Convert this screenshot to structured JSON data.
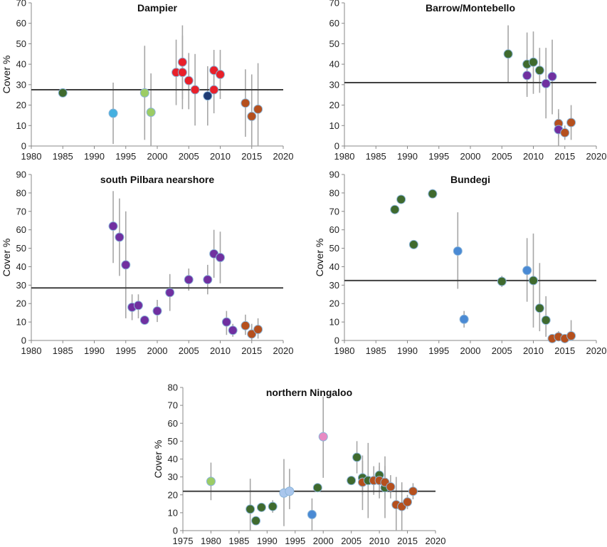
{
  "colors": {
    "axis": "#888888",
    "errorbar": "#a6a6a6",
    "meanline": "#404040",
    "point_outline": "#8ab4d8",
    "dark_green": "#3f6a2e",
    "light_green": "#9ccc65",
    "sky_blue": "#45b0e0",
    "mid_blue": "#4a8ad4",
    "light_blue": "#a9c6ec",
    "navy": "#1f3b73",
    "red": "#e8202a",
    "rust": "#b5501e",
    "purple": "#7030a0",
    "pink": "#e78ac3"
  },
  "chart_data": [
    {
      "type": "scatter",
      "title": "Dampier",
      "ylabel": "Cover %",
      "xlim": [
        1980,
        2020
      ],
      "xticks": [
        1980,
        1985,
        1990,
        1995,
        2000,
        2005,
        2010,
        2015,
        2020
      ],
      "ylim": [
        0,
        70
      ],
      "yticks": [
        0,
        10,
        20,
        30,
        40,
        50,
        60,
        70
      ],
      "mean": 27.5,
      "points": [
        {
          "x": 1985,
          "y": 26,
          "lo": 26,
          "hi": 26,
          "color": "dark_green"
        },
        {
          "x": 1993,
          "y": 16,
          "lo": 1,
          "hi": 31,
          "color": "sky_blue"
        },
        {
          "x": 1998,
          "y": 26,
          "lo": 3,
          "hi": 49,
          "color": "light_green"
        },
        {
          "x": 1999,
          "y": 16.5,
          "lo": 0,
          "hi": 35.5,
          "color": "light_green"
        },
        {
          "x": 2003,
          "y": 36,
          "lo": 20,
          "hi": 52,
          "color": "red"
        },
        {
          "x": 2004,
          "y": 41,
          "lo": 23,
          "hi": 59,
          "color": "red"
        },
        {
          "x": 2004,
          "y": 36,
          "lo": 18,
          "hi": 54,
          "color": "red"
        },
        {
          "x": 2005,
          "y": 32,
          "lo": 18,
          "hi": 45.5,
          "color": "red"
        },
        {
          "x": 2006,
          "y": 27.5,
          "lo": 10,
          "hi": 45,
          "color": "red"
        },
        {
          "x": 2008,
          "y": 24.5,
          "lo": 10,
          "hi": 39,
          "color": "navy"
        },
        {
          "x": 2009,
          "y": 37,
          "lo": 27,
          "hi": 47,
          "color": "red"
        },
        {
          "x": 2009,
          "y": 27.5,
          "lo": 16,
          "hi": 39,
          "color": "red"
        },
        {
          "x": 2010,
          "y": 35,
          "lo": 23,
          "hi": 47,
          "color": "red"
        },
        {
          "x": 2014,
          "y": 21,
          "lo": 4.5,
          "hi": 37.5,
          "color": "rust"
        },
        {
          "x": 2015,
          "y": 14.5,
          "lo": 0,
          "hi": 35,
          "color": "rust"
        },
        {
          "x": 2016,
          "y": 18,
          "lo": 0,
          "hi": 40.5,
          "color": "rust"
        }
      ]
    },
    {
      "type": "scatter",
      "title": "Barrow/Montebello",
      "ylabel": "",
      "xlim": [
        1980,
        2020
      ],
      "xticks": [
        1980,
        1985,
        1990,
        1995,
        2000,
        2005,
        2010,
        2015,
        2020
      ],
      "ylim": [
        0,
        70
      ],
      "yticks": [
        0,
        10,
        20,
        30,
        40,
        50,
        60,
        70
      ],
      "mean": 31,
      "points": [
        {
          "x": 2006,
          "y": 45,
          "lo": 31,
          "hi": 59,
          "color": "dark_green"
        },
        {
          "x": 2009,
          "y": 40,
          "lo": 25,
          "hi": 55.5,
          "color": "dark_green"
        },
        {
          "x": 2009,
          "y": 34.5,
          "lo": 24,
          "hi": 45,
          "color": "purple"
        },
        {
          "x": 2010,
          "y": 41,
          "lo": 25.5,
          "hi": 56,
          "color": "dark_green"
        },
        {
          "x": 2011,
          "y": 37,
          "lo": 26,
          "hi": 48,
          "color": "dark_green"
        },
        {
          "x": 2012,
          "y": 30.5,
          "lo": 13.5,
          "hi": 48,
          "color": "purple"
        },
        {
          "x": 2013,
          "y": 34,
          "lo": 15.5,
          "hi": 52,
          "color": "purple"
        },
        {
          "x": 2014,
          "y": 11,
          "lo": 4,
          "hi": 18,
          "color": "rust"
        },
        {
          "x": 2014,
          "y": 8,
          "lo": 0,
          "hi": 16,
          "color": "purple"
        },
        {
          "x": 2015,
          "y": 6.5,
          "lo": 3,
          "hi": 10,
          "color": "rust"
        },
        {
          "x": 2016,
          "y": 11.5,
          "lo": 3,
          "hi": 20,
          "color": "rust"
        }
      ]
    },
    {
      "type": "scatter",
      "title": "south Pilbara nearshore",
      "ylabel": "Cover %",
      "xlim": [
        1980,
        2020
      ],
      "xticks": [
        1980,
        1985,
        1990,
        1995,
        2000,
        2005,
        2010,
        2015,
        2020
      ],
      "ylim": [
        0,
        90
      ],
      "yticks": [
        0,
        10,
        20,
        30,
        40,
        50,
        60,
        70,
        80,
        90
      ],
      "mean": 28.5,
      "points": [
        {
          "x": 1993,
          "y": 62,
          "lo": 42,
          "hi": 81,
          "color": "purple"
        },
        {
          "x": 1994,
          "y": 56,
          "lo": 35,
          "hi": 77,
          "color": "purple"
        },
        {
          "x": 1995,
          "y": 41,
          "lo": 12,
          "hi": 70,
          "color": "purple"
        },
        {
          "x": 1996,
          "y": 18,
          "lo": 11,
          "hi": 25,
          "color": "purple"
        },
        {
          "x": 1997,
          "y": 19,
          "lo": 12,
          "hi": 25,
          "color": "purple"
        },
        {
          "x": 1998,
          "y": 11,
          "lo": 9,
          "hi": 13,
          "color": "purple"
        },
        {
          "x": 2000,
          "y": 16,
          "lo": 10,
          "hi": 22,
          "color": "purple"
        },
        {
          "x": 2002,
          "y": 26,
          "lo": 16,
          "hi": 36,
          "color": "purple"
        },
        {
          "x": 2005,
          "y": 33,
          "lo": 27,
          "hi": 39,
          "color": "purple"
        },
        {
          "x": 2008,
          "y": 33,
          "lo": 25,
          "hi": 41,
          "color": "purple"
        },
        {
          "x": 2009,
          "y": 47,
          "lo": 34,
          "hi": 60,
          "color": "purple"
        },
        {
          "x": 2010,
          "y": 45,
          "lo": 31,
          "hi": 59,
          "color": "purple"
        },
        {
          "x": 2011,
          "y": 10,
          "lo": 3,
          "hi": 16,
          "color": "purple"
        },
        {
          "x": 2012,
          "y": 5.5,
          "lo": 2,
          "hi": 9,
          "color": "purple"
        },
        {
          "x": 2014,
          "y": 8,
          "lo": 3,
          "hi": 14,
          "color": "rust"
        },
        {
          "x": 2015,
          "y": 3.5,
          "lo": 0,
          "hi": 9,
          "color": "rust"
        },
        {
          "x": 2016,
          "y": 6,
          "lo": 1,
          "hi": 12,
          "color": "rust"
        }
      ]
    },
    {
      "type": "scatter",
      "title": "Bundegi",
      "ylabel": "Cover %",
      "xlim": [
        1980,
        2020
      ],
      "xticks": [
        1980,
        1985,
        1990,
        1995,
        2000,
        2005,
        2010,
        2015,
        2020
      ],
      "ylim": [
        0,
        90
      ],
      "yticks": [
        0,
        10,
        20,
        30,
        40,
        50,
        60,
        70,
        80,
        90
      ],
      "mean": 32.5,
      "points": [
        {
          "x": 1988,
          "y": 71,
          "lo": 71,
          "hi": 71,
          "color": "dark_green"
        },
        {
          "x": 1989,
          "y": 76.5,
          "lo": 76.5,
          "hi": 76.5,
          "color": "dark_green"
        },
        {
          "x": 1991,
          "y": 52,
          "lo": 52,
          "hi": 52,
          "color": "dark_green"
        },
        {
          "x": 1994,
          "y": 79.5,
          "lo": 79.5,
          "hi": 79.5,
          "color": "dark_green"
        },
        {
          "x": 1998,
          "y": 48.5,
          "lo": 28,
          "hi": 69.5,
          "color": "mid_blue"
        },
        {
          "x": 1999,
          "y": 11.5,
          "lo": 7,
          "hi": 16,
          "color": "mid_blue"
        },
        {
          "x": 2005,
          "y": 32,
          "lo": 29,
          "hi": 35,
          "color": "dark_green"
        },
        {
          "x": 2009,
          "y": 38,
          "lo": 21,
          "hi": 55.5,
          "color": "mid_blue"
        },
        {
          "x": 2010,
          "y": 32.5,
          "lo": 7,
          "hi": 58,
          "color": "dark_green"
        },
        {
          "x": 2011,
          "y": 17.5,
          "lo": 5,
          "hi": 42,
          "color": "dark_green"
        },
        {
          "x": 2012,
          "y": 11,
          "lo": 2,
          "hi": 24,
          "color": "dark_green"
        },
        {
          "x": 2013,
          "y": 1,
          "lo": 0,
          "hi": 3,
          "color": "rust"
        },
        {
          "x": 2014,
          "y": 2,
          "lo": 0,
          "hi": 5,
          "color": "rust"
        },
        {
          "x": 2015,
          "y": 1,
          "lo": 0,
          "hi": 3,
          "color": "rust"
        },
        {
          "x": 2016,
          "y": 2.5,
          "lo": 0,
          "hi": 11,
          "color": "rust"
        }
      ]
    },
    {
      "type": "scatter",
      "title": "northern Ningaloo",
      "ylabel": "Cover %",
      "xlim": [
        1975,
        2020
      ],
      "xticks": [
        1975,
        1980,
        1985,
        1990,
        1995,
        2000,
        2005,
        2010,
        2015,
        2020
      ],
      "ylim": [
        0,
        80
      ],
      "yticks": [
        0,
        10,
        20,
        30,
        40,
        50,
        60,
        70,
        80
      ],
      "mean": 22,
      "points": [
        {
          "x": 1980,
          "y": 27.5,
          "lo": 17,
          "hi": 38,
          "color": "light_green"
        },
        {
          "x": 1987,
          "y": 12,
          "lo": 0,
          "hi": 29,
          "color": "dark_green"
        },
        {
          "x": 1988,
          "y": 5.5,
          "lo": 4,
          "hi": 7,
          "color": "dark_green"
        },
        {
          "x": 1989,
          "y": 13,
          "lo": 11,
          "hi": 15,
          "color": "dark_green"
        },
        {
          "x": 1991,
          "y": 13.5,
          "lo": 10,
          "hi": 17,
          "color": "dark_green"
        },
        {
          "x": 1993,
          "y": 21,
          "lo": 2.5,
          "hi": 40,
          "color": "light_blue"
        },
        {
          "x": 1994,
          "y": 22,
          "lo": 12,
          "hi": 34.5,
          "color": "light_blue"
        },
        {
          "x": 1998,
          "y": 9,
          "lo": 0,
          "hi": 18,
          "color": "mid_blue"
        },
        {
          "x": 1999,
          "y": 24,
          "lo": 22,
          "hi": 26,
          "color": "dark_green"
        },
        {
          "x": 2000,
          "y": 52.5,
          "lo": 29.5,
          "hi": 75,
          "color": "pink"
        },
        {
          "x": 2005,
          "y": 28,
          "lo": 26,
          "hi": 30,
          "color": "dark_green"
        },
        {
          "x": 2006,
          "y": 41,
          "lo": 32,
          "hi": 50,
          "color": "dark_green"
        },
        {
          "x": 2007,
          "y": 29.5,
          "lo": 20,
          "hi": 39,
          "color": "dark_green"
        },
        {
          "x": 2007,
          "y": 27,
          "lo": 11.5,
          "hi": 42,
          "color": "rust"
        },
        {
          "x": 2008,
          "y": 28,
          "lo": 7,
          "hi": 49,
          "color": "dark_green"
        },
        {
          "x": 2009,
          "y": 28,
          "lo": 20,
          "hi": 36,
          "color": "rust"
        },
        {
          "x": 2010,
          "y": 31,
          "lo": 26,
          "hi": 36,
          "color": "dark_green"
        },
        {
          "x": 2010,
          "y": 28,
          "lo": 18,
          "hi": 38,
          "color": "rust"
        },
        {
          "x": 2011,
          "y": 24,
          "lo": 7,
          "hi": 41.5,
          "color": "dark_green"
        },
        {
          "x": 2011,
          "y": 27,
          "lo": 18,
          "hi": 36,
          "color": "rust"
        },
        {
          "x": 2012,
          "y": 24.5,
          "lo": 18,
          "hi": 31,
          "color": "rust"
        },
        {
          "x": 2013,
          "y": 14.5,
          "lo": 0,
          "hi": 30,
          "color": "rust"
        },
        {
          "x": 2014,
          "y": 13.5,
          "lo": 0,
          "hi": 27,
          "color": "rust"
        },
        {
          "x": 2015,
          "y": 16,
          "lo": 12,
          "hi": 20,
          "color": "rust"
        },
        {
          "x": 2016,
          "y": 22,
          "lo": 17.5,
          "hi": 26.5,
          "color": "rust"
        }
      ]
    }
  ]
}
